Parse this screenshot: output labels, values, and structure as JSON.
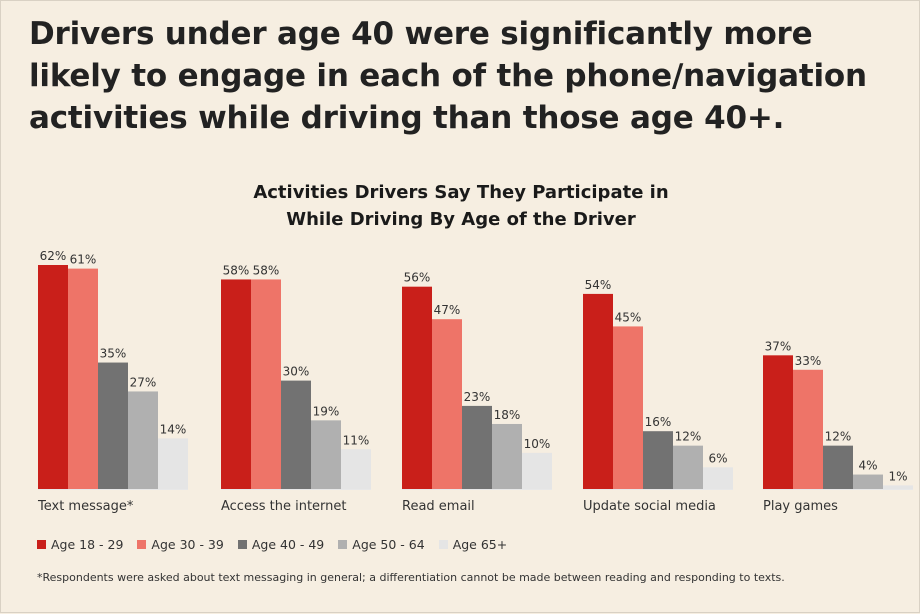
{
  "headline": "Drivers under age 40 were significantly more likely to engage in each of the phone/navigation activities while driving than those age 40+.",
  "footnote": "*Respondents were asked about text messaging in general; a differentiation cannot be made between reading and responding to texts.",
  "chart_data": {
    "type": "bar",
    "title": "Activities Drivers Say They Participate in While Driving By Age of the Driver",
    "title_lines": [
      "Activities Drivers Say They Participate in",
      "While Driving By Age of the Driver"
    ],
    "categories": [
      "Text message*",
      "Access the internet",
      "Read email",
      "Update social media",
      "Play games"
    ],
    "series": [
      {
        "name": "Age 18 - 29",
        "color": "#c91f1a",
        "values": [
          62,
          58,
          56,
          54,
          37
        ],
        "labels": [
          "62%",
          "58%",
          "56%",
          "54%",
          "37%"
        ]
      },
      {
        "name": "Age 30 - 39",
        "color": "#ee7468",
        "values": [
          61,
          58,
          47,
          45,
          33
        ],
        "labels": [
          "61%",
          "58%",
          "47%",
          "45%",
          "33%"
        ]
      },
      {
        "name": "Age 40 - 49",
        "color": "#727272",
        "values": [
          35,
          30,
          23,
          16,
          12
        ],
        "labels": [
          "35%",
          "30%",
          "23%",
          "16%",
          "12%"
        ]
      },
      {
        "name": "Age 50 - 64",
        "color": "#b0b0b0",
        "values": [
          27,
          19,
          18,
          12,
          4
        ],
        "labels": [
          "27%",
          "19%",
          "18%",
          "12%",
          "4%"
        ]
      },
      {
        "name": "Age 65+",
        "color": "#e5e5e5",
        "values": [
          14,
          11,
          10,
          6,
          1
        ],
        "labels": [
          "14%",
          "11%",
          "10%",
          "6%",
          "1%"
        ]
      }
    ],
    "ylim": [
      0,
      62
    ],
    "grid": false,
    "legend": "bottom-left"
  }
}
